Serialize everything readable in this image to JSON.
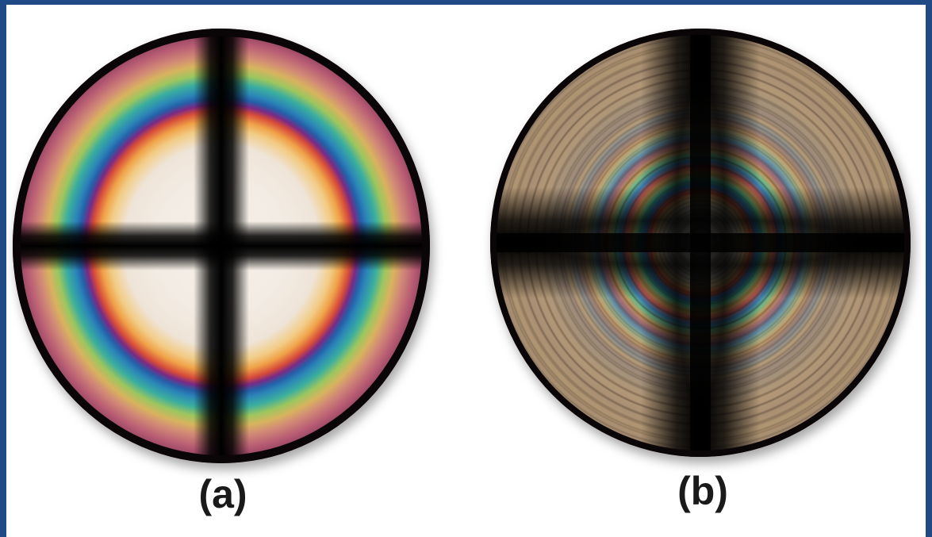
{
  "panels": [
    {
      "id": "a",
      "caption": "(a)"
    },
    {
      "id": "b",
      "caption": "(b)"
    }
  ],
  "colors": {
    "border": "#1f4a86",
    "background": "#ffffff",
    "caption": "#1a1a1a"
  }
}
